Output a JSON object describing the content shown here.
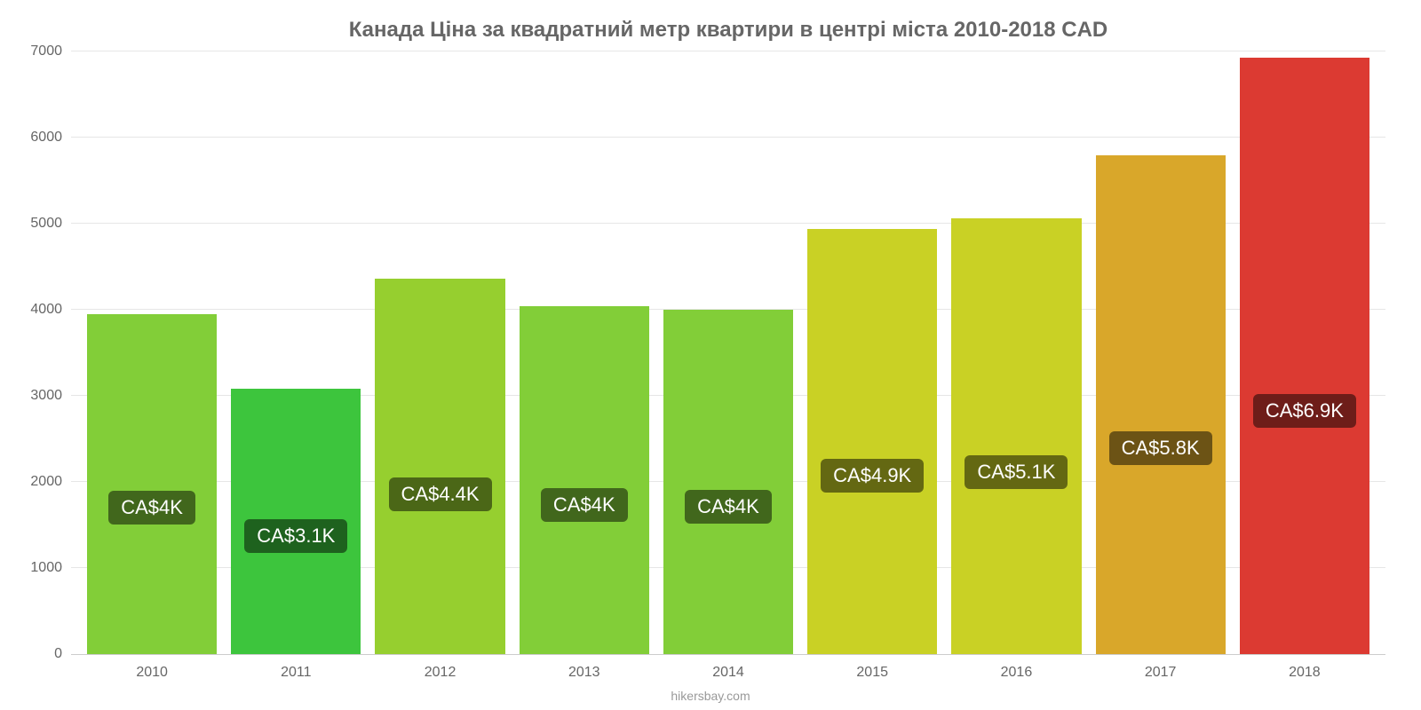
{
  "chart": {
    "type": "bar",
    "title": "Канада Ціна за квадратний метр квартири в центрі міста 2010-2018 CAD",
    "title_fontsize": 24,
    "title_color": "#666666",
    "background_color": "#ffffff",
    "grid_color": "#e6e6e6",
    "axis_color": "#cccccc",
    "categories": [
      "2010",
      "2011",
      "2012",
      "2013",
      "2014",
      "2015",
      "2016",
      "2017",
      "2018"
    ],
    "values": [
      3950,
      3080,
      4360,
      4040,
      4000,
      4940,
      5060,
      5790,
      6930
    ],
    "value_labels": [
      "CA$4K",
      "CA$3.1K",
      "CA$4.4K",
      "CA$4K",
      "CA$4K",
      "CA$4.9K",
      "CA$5.1K",
      "CA$5.8K",
      "CA$6.9K"
    ],
    "bar_colors": [
      "#82ce38",
      "#3dc53d",
      "#96cf2f",
      "#82ce38",
      "#82ce38",
      "#c9d125",
      "#c9d125",
      "#d9a72a",
      "#dc3a32"
    ],
    "ylim": [
      0,
      7000
    ],
    "yticks": [
      0,
      1000,
      2000,
      3000,
      4000,
      5000,
      6000,
      7000
    ],
    "ytick_labels": [
      "0",
      "1000",
      "2000",
      "3000",
      "4000",
      "5000",
      "6000",
      "7000"
    ],
    "label_fontsize": 16,
    "label_color": "#666666",
    "bar_label_fontsize": 22,
    "bar_label_bg": "rgba(0,0,0,0.5)",
    "bar_label_color": "#ffffff",
    "attribution": "hikersbay.com",
    "attribution_color": "#999999",
    "attribution_fontsize": 14
  }
}
